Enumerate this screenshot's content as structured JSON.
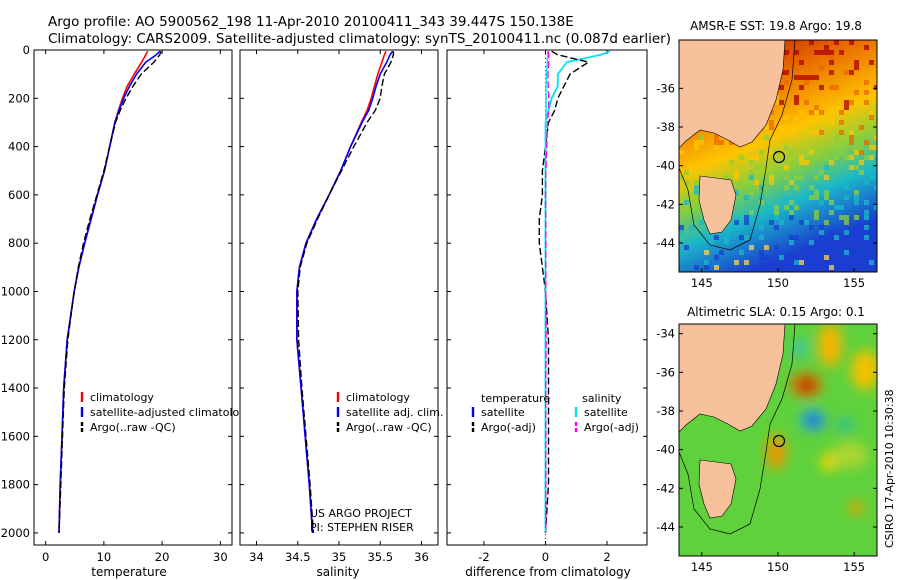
{
  "header": {
    "line1": "Argo profile: AO 5900562_198 11-Apr-2010 20100411_343 39.447S 150.138E",
    "line2": "Climatology: CARS2009. Satellite-adjusted climatology: synTS_20100411.nc (0.087d earlier)"
  },
  "footer": {
    "project": "US ARGO PROJECT",
    "pi": "PI: STEPHEN RISER",
    "stamp": "CSIRO 17-Apr-2010 10:30:38"
  },
  "colors": {
    "climatology": "#ff0000",
    "satellite": "#0000ff",
    "argo": "#000000",
    "temp_satellite": "#00e5ee",
    "salt_argo": "#ff00ff",
    "land": "#f7c19b"
  },
  "chart_data": [
    {
      "type": "line",
      "xlabel": "temperature",
      "ylabel": "",
      "xlim": [
        -2,
        32
      ],
      "ylim": [
        2050,
        0
      ],
      "x_ticks": [
        "0",
        "10",
        "20",
        "30"
      ],
      "y_ticks": [
        "0",
        "200",
        "400",
        "600",
        "800",
        "1000",
        "1200",
        "1400",
        "1600",
        "1800",
        "2000"
      ],
      "legend": [
        "climatology",
        "satellite-adjusted climatology",
        "Argo(..raw -QC)"
      ],
      "legend_position": "lower-right",
      "depth": [
        5,
        20,
        50,
        100,
        150,
        200,
        250,
        300,
        400,
        500,
        600,
        700,
        800,
        900,
        1000,
        1200,
        1400,
        1600,
        1800,
        2000
      ],
      "series": [
        {
          "name": "climatology",
          "values": [
            17.5,
            17.2,
            16.5,
            15.2,
            14.0,
            13.2,
            12.5,
            11.9,
            11.0,
            10.1,
            8.9,
            7.8,
            6.7,
            5.7,
            4.9,
            3.7,
            3.1,
            2.8,
            2.5,
            2.3
          ]
        },
        {
          "name": "satellite-adjusted climatology",
          "values": [
            19.6,
            19.0,
            17.2,
            15.6,
            14.4,
            13.4,
            12.6,
            11.9,
            11.0,
            10.1,
            8.9,
            7.8,
            6.7,
            5.7,
            4.9,
            3.7,
            3.1,
            2.8,
            2.5,
            2.3
          ]
        },
        {
          "name": "Argo(..raw -QC)",
          "values": [
            19.8,
            19.6,
            18.6,
            16.4,
            15.0,
            13.8,
            12.8,
            12.0,
            11.0,
            10.0,
            8.8,
            7.6,
            6.5,
            5.6,
            4.9,
            3.8,
            3.2,
            2.9,
            2.6,
            2.3
          ]
        }
      ]
    },
    {
      "type": "line",
      "xlabel": "salinity",
      "ylabel": "",
      "xlim": [
        33.8,
        36.2
      ],
      "ylim": [
        2050,
        0
      ],
      "x_ticks": [
        "34",
        "34.5",
        "35",
        "35.5",
        "36"
      ],
      "legend": [
        "climatology",
        "satellite adj. clim.",
        "Argo(..raw -QC)"
      ],
      "legend_position": "lower-right",
      "depth": [
        5,
        20,
        50,
        100,
        150,
        200,
        250,
        300,
        400,
        500,
        600,
        700,
        800,
        900,
        1000,
        1200,
        1400,
        1600,
        1800,
        2000
      ],
      "series": [
        {
          "name": "climatology",
          "values": [
            35.57,
            35.55,
            35.52,
            35.47,
            35.43,
            35.39,
            35.34,
            35.27,
            35.14,
            35.02,
            34.88,
            34.73,
            34.6,
            34.52,
            34.49,
            34.49,
            34.54,
            34.59,
            34.64,
            34.68
          ]
        },
        {
          "name": "satellite adj. clim.",
          "values": [
            35.65,
            35.62,
            35.58,
            35.5,
            35.45,
            35.41,
            35.36,
            35.28,
            35.14,
            35.02,
            34.88,
            34.73,
            34.6,
            34.52,
            34.49,
            34.49,
            34.54,
            34.59,
            34.64,
            34.68
          ]
        },
        {
          "name": "Argo(..raw -QC)",
          "values": [
            35.66,
            35.66,
            35.63,
            35.55,
            35.52,
            35.5,
            35.44,
            35.34,
            35.18,
            35.03,
            34.88,
            34.74,
            34.61,
            34.53,
            34.5,
            34.51,
            34.55,
            34.6,
            34.65,
            34.69
          ]
        }
      ]
    },
    {
      "type": "line",
      "xlabel": "difference from climatology",
      "ylabel": "",
      "xlim": [
        -3.2,
        3.3
      ],
      "ylim": [
        2050,
        0
      ],
      "x_ticks": [
        "-2",
        "0",
        "2"
      ],
      "legend_headers": [
        "temperature",
        "salinity"
      ],
      "legend": [
        "satellite",
        "Argo(-adj)",
        "satellite",
        "Argo(-adj)"
      ],
      "legend_position": "lower-right",
      "depth": [
        5,
        20,
        50,
        100,
        150,
        200,
        250,
        300,
        400,
        500,
        600,
        700,
        800,
        900,
        1000,
        1200,
        1400,
        1600,
        1800,
        2000
      ],
      "series": [
        {
          "name": "temperature satellite",
          "values": [
            2.1,
            1.8,
            0.7,
            0.4,
            0.4,
            0.2,
            0.1,
            0.0,
            0.0,
            0.0,
            0.0,
            0.0,
            0.0,
            0.0,
            0.0,
            0.0,
            0.0,
            0.0,
            0.0,
            0.0
          ]
        },
        {
          "name": "temperature Argo(-adj)",
          "values": [
            0.2,
            0.4,
            1.4,
            0.8,
            0.6,
            0.4,
            0.3,
            0.1,
            0.0,
            -0.1,
            -0.1,
            -0.2,
            -0.2,
            -0.1,
            0.0,
            0.1,
            0.1,
            0.1,
            0.1,
            0.0
          ]
        },
        {
          "name": "salinity satellite",
          "values": [
            0.08,
            0.07,
            0.06,
            0.03,
            0.02,
            0.02,
            0.02,
            0.01,
            0.0,
            0.0,
            0.0,
            0.0,
            0.0,
            0.0,
            0.0,
            0.0,
            0.0,
            0.0,
            0.0,
            0.0
          ]
        },
        {
          "name": "salinity Argo(-adj)",
          "values": [
            0.09,
            0.11,
            0.11,
            0.08,
            0.09,
            0.11,
            0.1,
            0.07,
            0.04,
            0.01,
            0.0,
            0.01,
            0.01,
            0.01,
            0.01,
            0.02,
            0.01,
            0.01,
            0.01,
            0.01
          ]
        }
      ]
    },
    {
      "type": "heatmap",
      "title": "AMSR-E SST: 19.8 Argo: 19.8",
      "xlim": [
        143.5,
        156.5
      ],
      "ylim": [
        -45.5,
        -33.5
      ],
      "x_ticks": [
        "145",
        "150",
        "155"
      ],
      "y_ticks": [
        "-36",
        "-38",
        "-40",
        "-42",
        "-44"
      ],
      "marker": {
        "lon": 150.138,
        "lat": -39.447
      }
    },
    {
      "type": "heatmap",
      "title": "Altimetric SLA: 0.15 Argo: 0.1",
      "xlim": [
        143.5,
        156.5
      ],
      "ylim": [
        -45.5,
        -33.5
      ],
      "x_ticks": [
        "145",
        "150",
        "155"
      ],
      "y_ticks": [
        "-34",
        "-36",
        "-38",
        "-40",
        "-42",
        "-44"
      ],
      "marker": {
        "lon": 150.138,
        "lat": -39.447
      }
    }
  ]
}
